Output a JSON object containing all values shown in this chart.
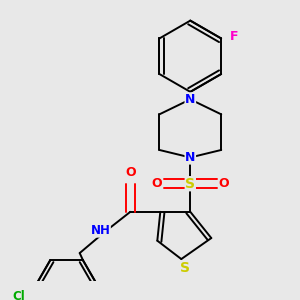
{
  "bg_color": "#e8e8e8",
  "bond_color": "#000000",
  "atom_colors": {
    "N": "#0000ff",
    "O": "#ff0000",
    "S": "#cccc00",
    "F": "#ff00cc",
    "Cl": "#00aa00"
  },
  "figsize": [
    3.0,
    3.0
  ],
  "dpi": 100,
  "lw": 1.4,
  "fs": 9
}
